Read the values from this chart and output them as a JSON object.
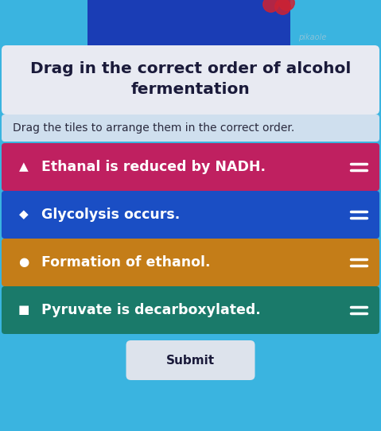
{
  "title_line1": "Drag in the correct order of alcohol",
  "title_line2": "fermentation",
  "subtitle": "Drag the tiles to arrange them in the correct order.",
  "bg_color": "#3ab4e0",
  "title_box_color": "#e8eaf2",
  "subtitle_box_color": "#e0e4f0",
  "tiles": [
    {
      "text": "Ethanal is reduced by NADH.",
      "color": "#bf2060",
      "icon_char": "▲"
    },
    {
      "text": "Glycolysis occurs.",
      "color": "#1a4ec4",
      "icon_char": "◆"
    },
    {
      "text": "Formation of ethanol.",
      "color": "#c47d18",
      "icon_char": "●"
    },
    {
      "text": "Pyruvate is decarboxylated.",
      "color": "#1a7a6a",
      "icon_char": "■"
    }
  ],
  "submit_label": "Submit",
  "submit_box_color": "#dde3ec",
  "pikaole_text": "pikaole",
  "pikaole_color": "#90c4d8",
  "hamburger_color": "#ffffff",
  "tile_text_color": "#ffffff",
  "tile_fontsize": 12.5,
  "title_fontsize": 14.5,
  "subtitle_fontsize": 10,
  "title_text_color": "#1a1a3a",
  "subtitle_text_color": "#2a2a3e",
  "top_image_color": "#1a3db5",
  "top_image_accent": "#cc2233"
}
